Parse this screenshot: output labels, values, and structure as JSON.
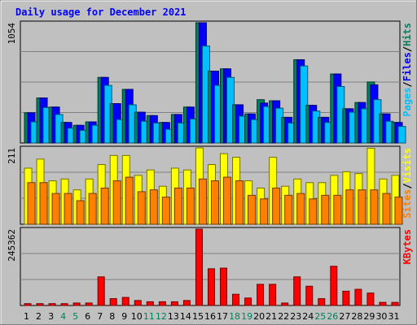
{
  "chart_data": {
    "type": "bar",
    "title": "Daily usage for December 2021",
    "categories": [
      "1",
      "2",
      "3",
      "4",
      "5",
      "6",
      "7",
      "8",
      "9",
      "10",
      "11",
      "12",
      "13",
      "14",
      "15",
      "16",
      "17",
      "18",
      "19",
      "20",
      "21",
      "22",
      "23",
      "24",
      "25",
      "26",
      "27",
      "28",
      "29",
      "30",
      "31"
    ],
    "weekend_categories": [
      "4",
      "5",
      "11",
      "12",
      "18",
      "19",
      "25",
      "26"
    ],
    "panels": [
      {
        "name": "hits-files-pages",
        "ymax_label": "1054",
        "ymax": 1054,
        "gridlines": 4,
        "legend": [
          "Pages",
          "/",
          "Files",
          "/",
          "Hits"
        ],
        "series": [
          {
            "name": "Hits",
            "color": "#00805c",
            "values": [
              265,
              395,
              315,
              180,
              155,
              185,
              575,
              345,
              470,
              270,
              240,
              180,
              250,
              315,
              1054,
              630,
              650,
              335,
              255,
              380,
              370,
              225,
              730,
              330,
              225,
              605,
              300,
              355,
              535,
              255,
              180
            ]
          },
          {
            "name": "Files",
            "color": "#0000ff",
            "values": [
              265,
              395,
              315,
              180,
              155,
              185,
              575,
              345,
              470,
              270,
              240,
              180,
              250,
              315,
              1054,
              630,
              650,
              335,
              255,
              350,
              370,
              225,
              730,
              330,
              225,
              605,
              300,
              355,
              510,
              255,
              180
            ]
          },
          {
            "name": "Pages",
            "color": "#00c0ff",
            "values": [
              185,
              310,
              250,
              130,
              110,
              155,
              505,
              205,
              335,
              190,
              175,
              120,
              175,
              210,
              850,
              505,
              575,
              235,
              205,
              320,
              305,
              175,
              675,
              280,
              180,
              495,
              270,
              300,
              380,
              190,
              145
            ]
          }
        ]
      },
      {
        "name": "visits-sites",
        "ymax_label": "211",
        "ymax": 211,
        "gridlines": 3,
        "legend": [
          "Sites",
          "/",
          "Visits"
        ],
        "series": [
          {
            "name": "Visits",
            "color": "#ffff00",
            "values": [
              155,
              180,
              120,
              125,
              95,
              125,
              165,
              190,
              190,
              135,
              150,
              105,
              155,
              150,
              211,
              165,
              195,
              185,
              120,
              100,
              185,
              105,
              125,
              115,
              115,
              135,
              145,
              140,
              210,
              125,
              135
            ]
          },
          {
            "name": "Sites",
            "color": "#ff8000",
            "values": [
              115,
              115,
              85,
              85,
              65,
              85,
              100,
              120,
              130,
              90,
              95,
              75,
              100,
              100,
              125,
              120,
              130,
              120,
              80,
              70,
              100,
              80,
              85,
              70,
              80,
              80,
              95,
              95,
              95,
              85,
              75
            ]
          }
        ]
      },
      {
        "name": "kbytes",
        "ymax_label": "245362",
        "ymax": 245362,
        "gridlines": 3,
        "legend": [
          "KBytes"
        ],
        "series": [
          {
            "name": "KBytes",
            "color": "#ff0000",
            "values": [
              6000,
              6000,
              6000,
              6000,
              8000,
              8000,
              92000,
              22000,
              26000,
              16000,
              12000,
              12000,
              12000,
              16000,
              245362,
              118000,
              120000,
              36000,
              24000,
              68000,
              68000,
              8000,
              92000,
              62000,
              22000,
              126000,
              46000,
              52000,
              40000,
              10000,
              10000
            ]
          }
        ]
      }
    ]
  }
}
